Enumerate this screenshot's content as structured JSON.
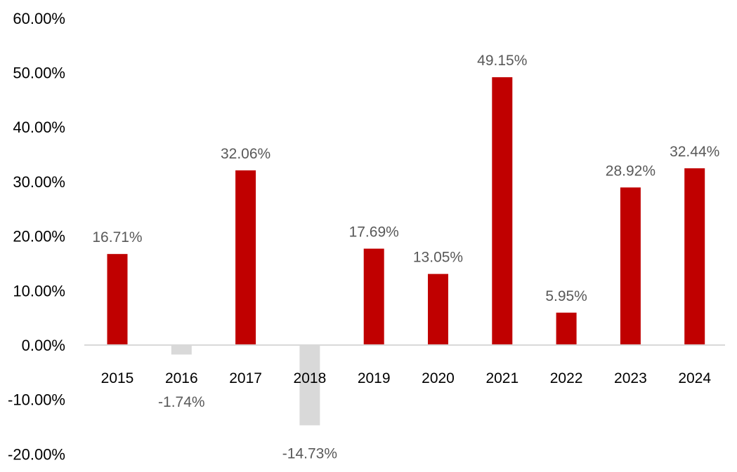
{
  "chart_data": {
    "type": "bar",
    "title": "",
    "xlabel": "",
    "ylabel": "",
    "categories": [
      "2015",
      "2016",
      "2017",
      "2018",
      "2019",
      "2020",
      "2021",
      "2022",
      "2023",
      "2024"
    ],
    "values": [
      16.71,
      -1.74,
      32.06,
      -14.73,
      17.69,
      13.05,
      49.15,
      5.95,
      28.92,
      32.44
    ],
    "data_labels": [
      "16.71%",
      "-1.74%",
      "32.06%",
      "-14.73%",
      "17.69%",
      "13.05%",
      "49.15%",
      "5.95%",
      "28.92%",
      "32.44%"
    ],
    "ylim": [
      -20,
      60
    ],
    "yticks": [
      60,
      50,
      40,
      30,
      20,
      10,
      0,
      -10,
      -20
    ],
    "ytick_labels": [
      "60.00%",
      "50.00%",
      "40.00%",
      "30.00%",
      "20.00%",
      "10.00%",
      "0.00%",
      "-10.00%",
      "-20.00%"
    ],
    "grid": false,
    "legend": "none",
    "colors": {
      "positive": "#C00000",
      "negative": "#D9D9D9",
      "axis": "#D9D9D9"
    }
  }
}
